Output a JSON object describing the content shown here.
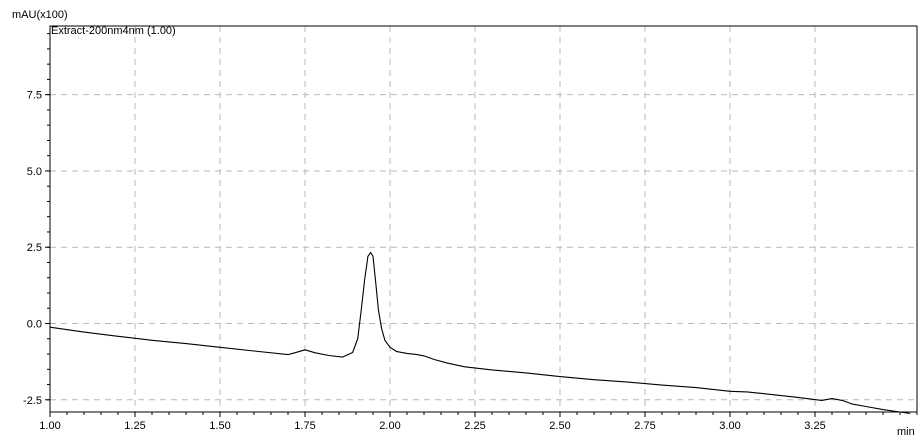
{
  "chart_data": {
    "type": "line",
    "ylabel": "mAU(x100)",
    "xlabel": "min",
    "xlim": [
      1.0,
      3.55
    ],
    "ylim": [
      -2.9,
      9.75
    ],
    "xticks": [
      "1.00",
      "1.25",
      "1.50",
      "1.75",
      "2.00",
      "2.25",
      "2.50",
      "2.75",
      "3.00",
      "3.25"
    ],
    "yticks": [
      "-2.5",
      "0.0",
      "2.5",
      "5.0",
      "7.5"
    ],
    "grid": true,
    "legend_position": "top-left",
    "series": [
      {
        "name": "Extract-200nm4nm (1.00)",
        "x": [
          1.0,
          1.1,
          1.2,
          1.3,
          1.4,
          1.5,
          1.6,
          1.7,
          1.72,
          1.75,
          1.78,
          1.82,
          1.86,
          1.89,
          1.905,
          1.915,
          1.925,
          1.935,
          1.943,
          1.95,
          1.958,
          1.966,
          1.975,
          1.985,
          2.0,
          2.02,
          2.05,
          2.08,
          2.1,
          2.13,
          2.17,
          2.22,
          2.3,
          2.4,
          2.5,
          2.6,
          2.7,
          2.8,
          2.9,
          3.0,
          3.05,
          3.1,
          3.2,
          3.27,
          3.3,
          3.33,
          3.36,
          3.4,
          3.45,
          3.5,
          3.53
        ],
        "y": [
          -0.12,
          -0.28,
          -0.42,
          -0.55,
          -0.66,
          -0.78,
          -0.9,
          -1.02,
          -0.96,
          -0.86,
          -0.96,
          -1.05,
          -1.1,
          -0.95,
          -0.5,
          0.4,
          1.4,
          2.2,
          2.33,
          2.2,
          1.35,
          0.45,
          -0.15,
          -0.55,
          -0.78,
          -0.92,
          -0.98,
          -1.02,
          -1.06,
          -1.18,
          -1.3,
          -1.42,
          -1.52,
          -1.62,
          -1.74,
          -1.84,
          -1.92,
          -2.02,
          -2.1,
          -2.22,
          -2.24,
          -2.3,
          -2.42,
          -2.52,
          -2.46,
          -2.52,
          -2.64,
          -2.72,
          -2.82,
          -2.9,
          -2.95
        ]
      }
    ]
  }
}
